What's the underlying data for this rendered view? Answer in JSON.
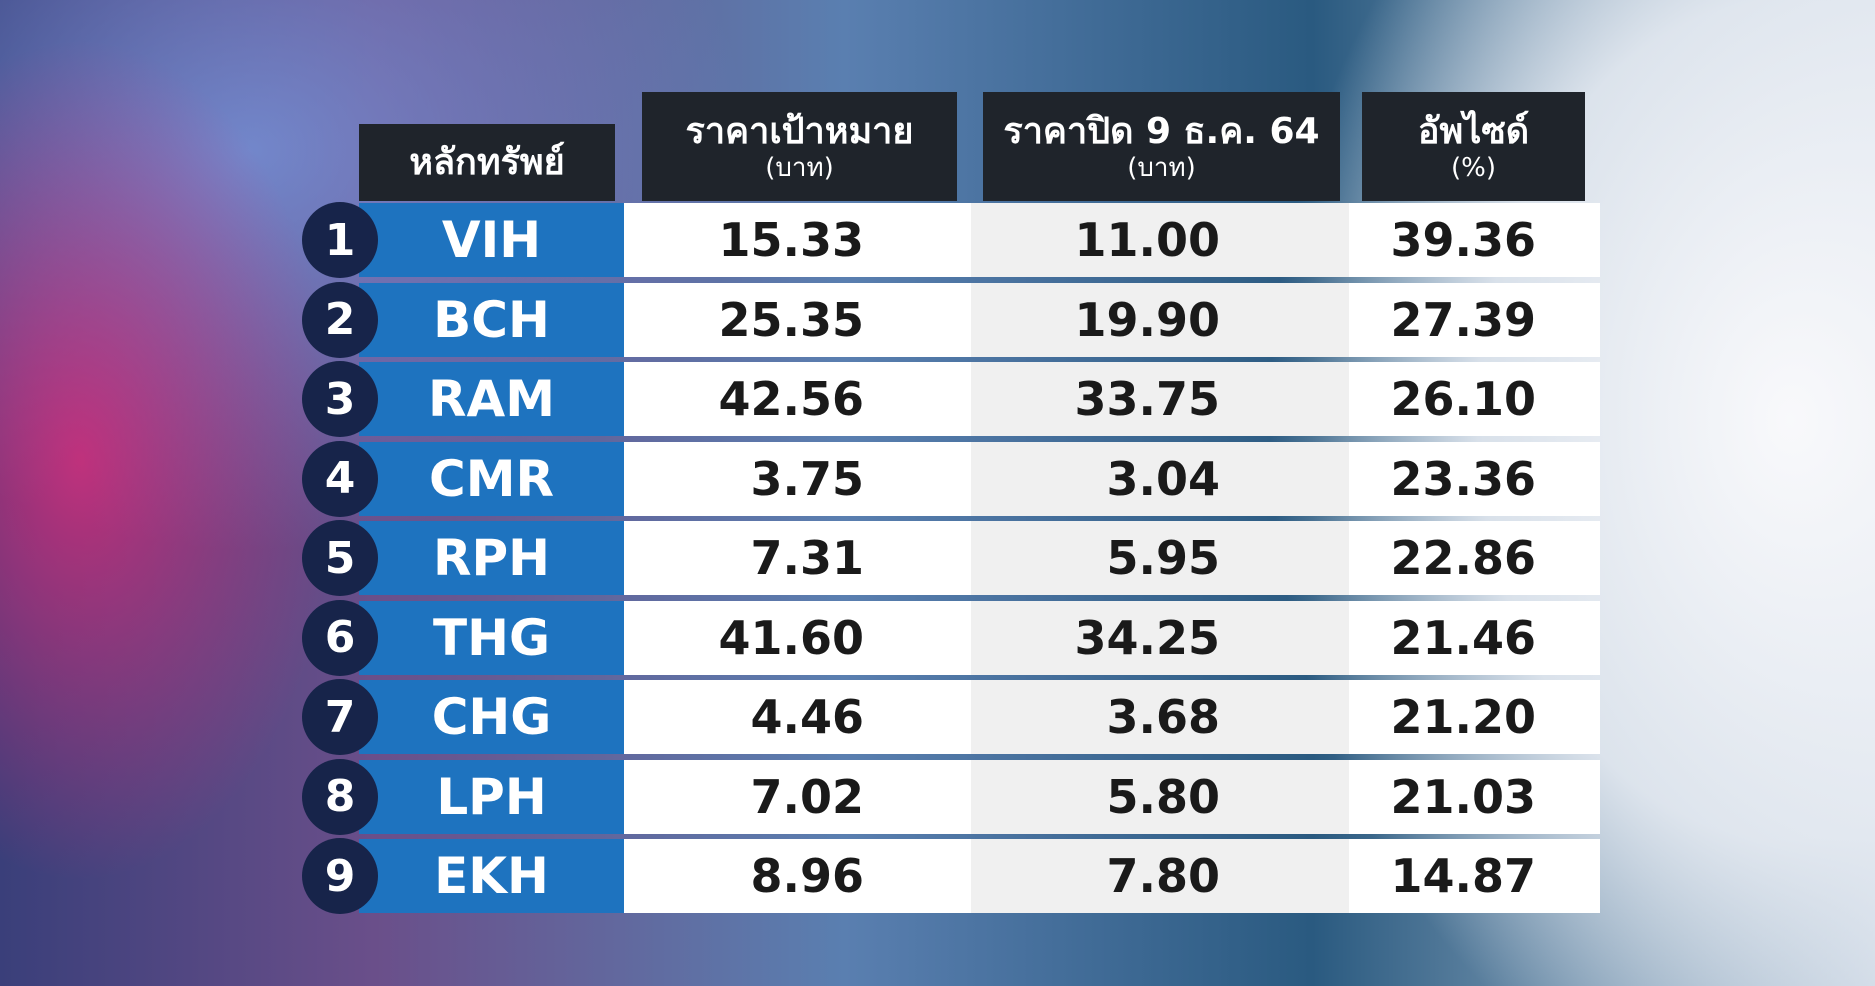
{
  "table": {
    "header": [
      {
        "title": "หลักทรัพย์"
      },
      {
        "title": "ราคาเป้าหมาย",
        "unit": "(บาท)"
      },
      {
        "title": "ราคาปิด 9 ธ.ค. 64",
        "unit": "(บาท)"
      },
      {
        "title": "อัพไซด์",
        "unit": "(%)"
      }
    ],
    "rows": [
      [
        "1",
        "VIH",
        "15.33",
        "11.00",
        "39.36"
      ],
      [
        "2",
        "BCH",
        "25.35",
        "19.90",
        "27.39"
      ],
      [
        "3",
        "RAM",
        "42.56",
        "33.75",
        "26.10"
      ],
      [
        "4",
        "CMR",
        "3.75",
        "3.04",
        "23.36"
      ],
      [
        "5",
        "RPH",
        "7.31",
        "5.95",
        "22.86"
      ],
      [
        "6",
        "THG",
        "41.60",
        "34.25",
        "21.46"
      ],
      [
        "7",
        "CHG",
        "4.46",
        "3.68",
        "21.20"
      ],
      [
        "8",
        "LPH",
        "7.02",
        "5.80",
        "21.03"
      ],
      [
        "9",
        "EKH",
        "8.96",
        "7.80",
        "14.87"
      ]
    ]
  }
}
